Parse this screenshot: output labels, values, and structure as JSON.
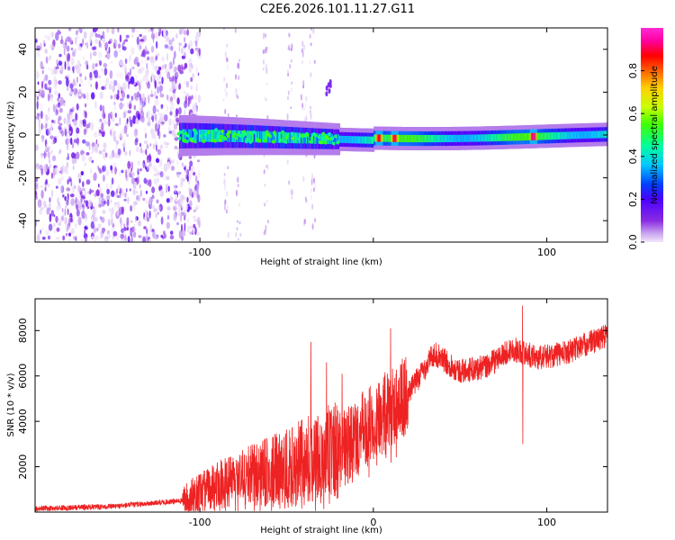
{
  "title": "C2E6.2026.101.11.27.G11",
  "chart_data": [
    {
      "type": "heatmap",
      "xlabel": "Height of straight line (km)",
      "ylabel": "Frequency (Hz)",
      "xlim": [
        -195,
        135
      ],
      "ylim": [
        -50,
        50
      ],
      "xticks": [
        -100,
        0,
        100
      ],
      "xtick_labels": [
        "-100",
        "",
        "100"
      ],
      "yticks": [
        -40,
        -20,
        0,
        20,
        40
      ],
      "ytick_labels": [
        "-40",
        "-20",
        "0",
        "20",
        "40"
      ],
      "colorbar": {
        "label": "Normalized spectral amplitude",
        "range": [
          0,
          1
        ],
        "ticks": [
          0.0,
          0.2,
          0.4,
          0.6,
          0.8
        ],
        "tick_labels": [
          "0.0",
          "0.2",
          "0.4",
          "0.6",
          "0.8"
        ],
        "colormap": [
          "#f2e6fa",
          "#c9a6f0",
          "#8a2be2",
          "#4b00ff",
          "#0040ff",
          "#00c8ff",
          "#00ff9c",
          "#40ff00",
          "#c8ff00",
          "#ffd000",
          "#ff6000",
          "#ff0000",
          "#ff00a0",
          "#ff2ad4"
        ]
      },
      "features": {
        "noise_region_x": [
          -195,
          -100
        ],
        "signal_band_center_hz": 0,
        "signal_band_start_x": -112,
        "peaks": [
          {
            "x": 3,
            "amp": 0.9
          },
          {
            "x": 12,
            "amp": 0.9
          },
          {
            "x": 92,
            "amp": 0.95
          }
        ]
      }
    },
    {
      "type": "line",
      "xlabel": "Height of straight line (km)",
      "ylabel": "SNR (10 * v/v)",
      "xlim": [
        -195,
        135
      ],
      "ylim": [
        0,
        9400
      ],
      "xticks": [
        -100,
        0,
        100
      ],
      "xtick_labels": [
        "-100",
        "0",
        "100"
      ],
      "yticks": [
        2000,
        4000,
        6000,
        8000
      ],
      "ytick_labels": [
        "2000",
        "4000",
        "6000",
        "8000"
      ],
      "color": "#ee2222",
      "trend": [
        {
          "x": -195,
          "y": 150
        },
        {
          "x": -150,
          "y": 250
        },
        {
          "x": -110,
          "y": 500
        },
        {
          "x": -90,
          "y": 1200
        },
        {
          "x": -70,
          "y": 1600
        },
        {
          "x": -50,
          "y": 1900
        },
        {
          "x": -30,
          "y": 2500
        },
        {
          "x": -15,
          "y": 2800
        },
        {
          "x": 0,
          "y": 4000
        },
        {
          "x": 20,
          "y": 5200
        },
        {
          "x": 35,
          "y": 7000
        },
        {
          "x": 50,
          "y": 6200
        },
        {
          "x": 65,
          "y": 6400
        },
        {
          "x": 80,
          "y": 7200
        },
        {
          "x": 95,
          "y": 6800
        },
        {
          "x": 110,
          "y": 7000
        },
        {
          "x": 135,
          "y": 7800
        }
      ],
      "spikes": [
        {
          "x": -36,
          "y": 7500
        },
        {
          "x": -27,
          "y": 6600
        },
        {
          "x": -18,
          "y": 6100
        },
        {
          "x": 10,
          "y": 8100
        },
        {
          "x": 86,
          "y": 9100
        }
      ],
      "dips": [
        {
          "x": 86,
          "y": 3000
        }
      ]
    }
  ]
}
